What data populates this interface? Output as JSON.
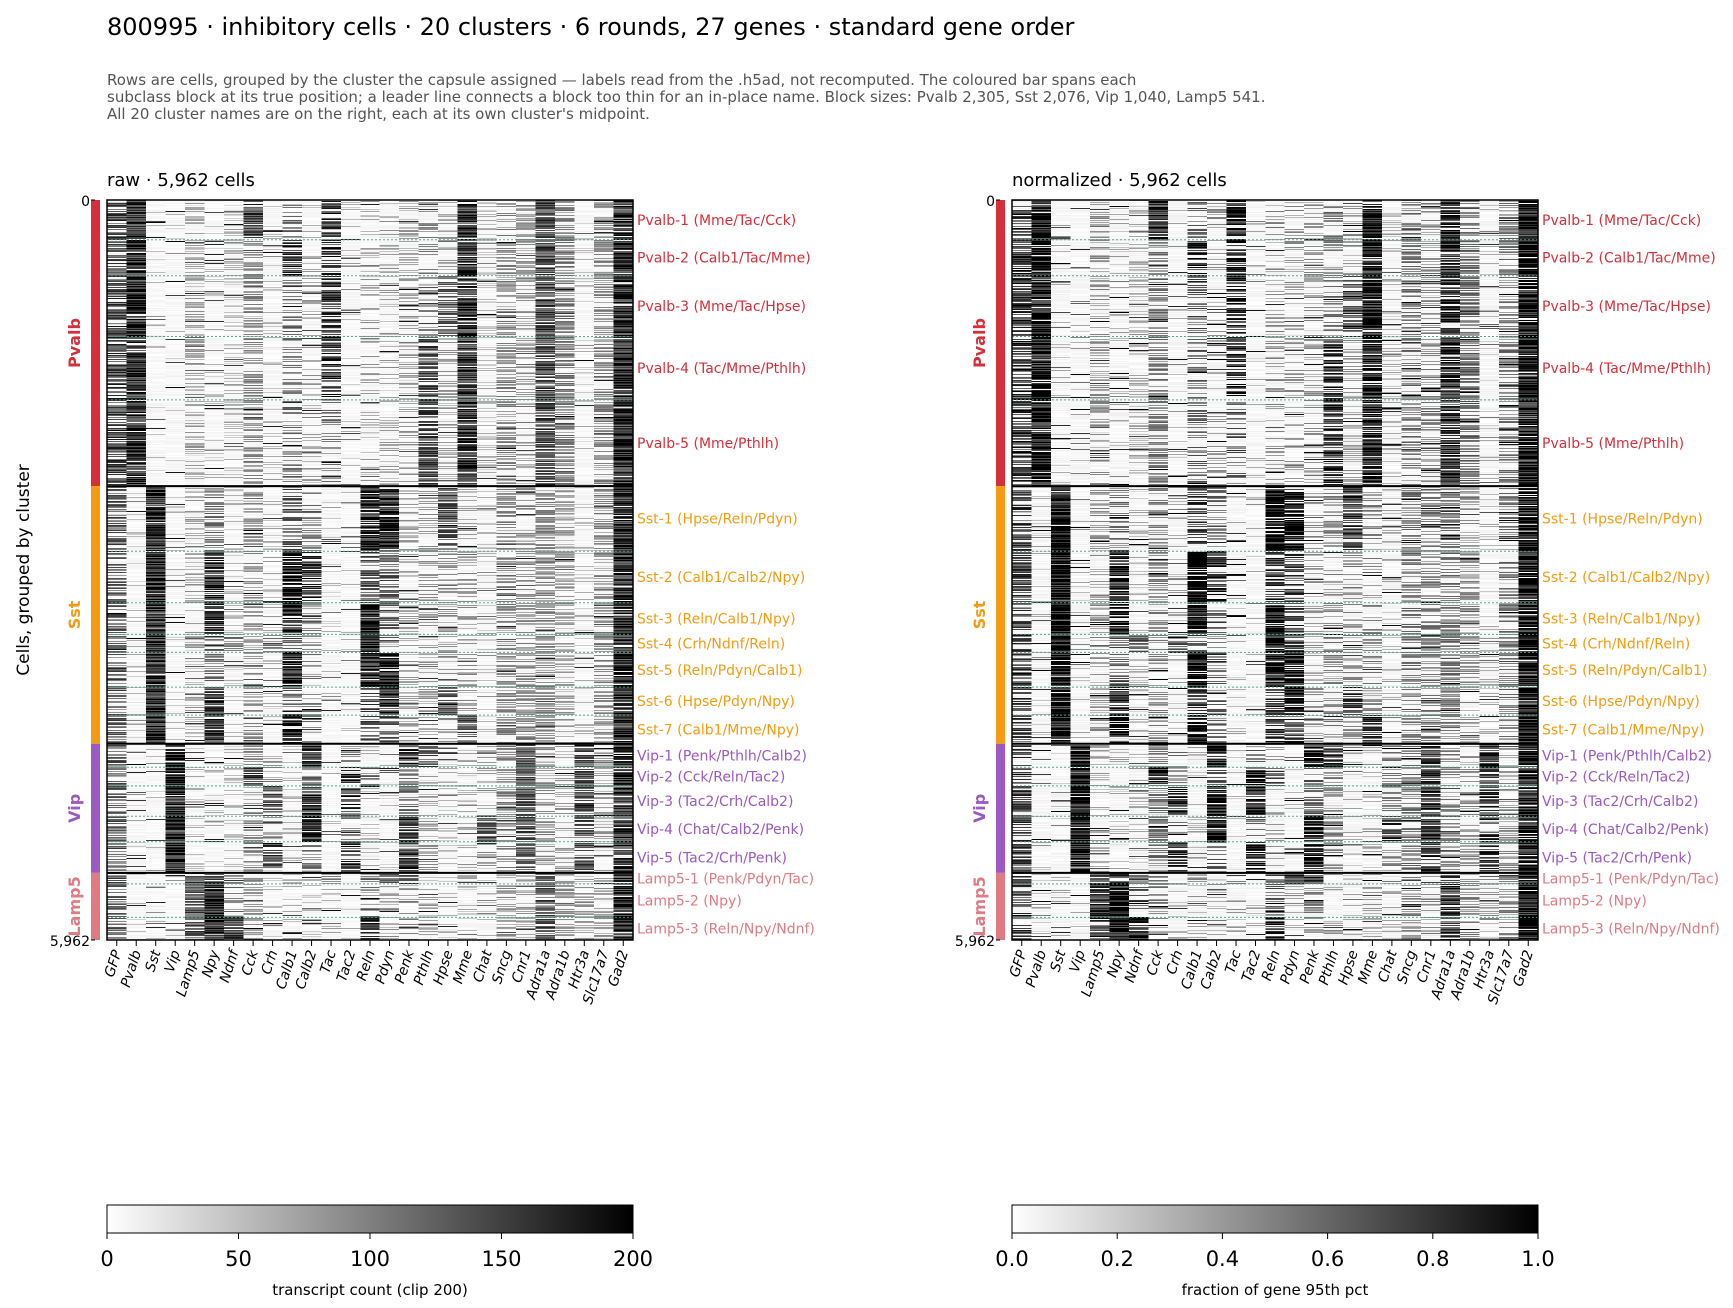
{
  "title": "800995 · inhibitory cells · 20 clusters · 6 rounds, 27 genes · standard gene order",
  "subtitle": [
    "Rows are cells, grouped by the cluster the capsule assigned — labels read from the .h5ad, not recomputed. The coloured bar spans each",
    "subclass block at its true position; a leader line connects a block too thin for an in-place name.  Block sizes: Pvalb 2,305, Sst 2,076, Vip 1,040, Lamp5 541.",
    "All 20 cluster names are on the right, each at its own cluster's midpoint."
  ],
  "y_axis_label": "Cells, grouped by cluster",
  "colors": {
    "Pvalb": "#d62f3a",
    "Sst": "#f59b12",
    "Vip": "#9b59c2",
    "Lamp5": "#e07b84",
    "cluster_divider": "#4a9e8a"
  },
  "chart_data": {
    "type": "heatmap",
    "total_cells": 5962,
    "y_ticks": [
      "0",
      "5,962"
    ],
    "subclasses": [
      {
        "name": "Pvalb",
        "start": 0,
        "size": 2305
      },
      {
        "name": "Sst",
        "start": 2305,
        "size": 2076
      },
      {
        "name": "Vip",
        "start": 4381,
        "size": 1040
      },
      {
        "name": "Lamp5",
        "start": 5421,
        "size": 541
      }
    ],
    "clusters": [
      {
        "name": "Pvalb-1 (Mme/Tac/Cck)",
        "subclass": "Pvalb",
        "start": 0,
        "end": 320
      },
      {
        "name": "Pvalb-2 (Calb1/Tac/Mme)",
        "subclass": "Pvalb",
        "start": 320,
        "end": 610
      },
      {
        "name": "Pvalb-3 (Mme/Tac/Hpse)",
        "subclass": "Pvalb",
        "start": 610,
        "end": 1100
      },
      {
        "name": "Pvalb-4 (Tac/Mme/Pthlh)",
        "subclass": "Pvalb",
        "start": 1100,
        "end": 1610
      },
      {
        "name": "Pvalb-5 (Mme/Pthlh)",
        "subclass": "Pvalb",
        "start": 1610,
        "end": 2305
      },
      {
        "name": "Sst-1 (Hpse/Reln/Pdyn)",
        "subclass": "Sst",
        "start": 2305,
        "end": 2830
      },
      {
        "name": "Sst-2 (Calb1/Calb2/Npy)",
        "subclass": "Sst",
        "start": 2830,
        "end": 3245
      },
      {
        "name": "Sst-3 (Reln/Calb1/Npy)",
        "subclass": "Sst",
        "start": 3245,
        "end": 3500
      },
      {
        "name": "Sst-4 (Crh/Ndnf/Reln)",
        "subclass": "Sst",
        "start": 3500,
        "end": 3645
      },
      {
        "name": "Sst-5 (Reln/Pdyn/Calb1)",
        "subclass": "Sst",
        "start": 3645,
        "end": 3925
      },
      {
        "name": "Sst-6 (Hpse/Pdyn/Npy)",
        "subclass": "Sst",
        "start": 3925,
        "end": 4150
      },
      {
        "name": "Sst-7 (Calb1/Mme/Npy)",
        "subclass": "Sst",
        "start": 4150,
        "end": 4381
      },
      {
        "name": "Vip-1 (Penk/Pthlh/Calb2)",
        "subclass": "Vip",
        "start": 4381,
        "end": 4570
      },
      {
        "name": "Vip-2 (Cck/Reln/Tac2)",
        "subclass": "Vip",
        "start": 4570,
        "end": 4720
      },
      {
        "name": "Vip-3 (Tac2/Crh/Calb2)",
        "subclass": "Vip",
        "start": 4720,
        "end": 4965
      },
      {
        "name": "Vip-4 (Chat/Calb2/Penk)",
        "subclass": "Vip",
        "start": 4965,
        "end": 5170
      },
      {
        "name": "Vip-5 (Tac2/Crh/Penk)",
        "subclass": "Vip",
        "start": 5170,
        "end": 5421
      },
      {
        "name": "Lamp5-1 (Penk/Pdyn/Tac)",
        "subclass": "Lamp5",
        "start": 5421,
        "end": 5510
      },
      {
        "name": "Lamp5-2 (Npy)",
        "subclass": "Lamp5",
        "start": 5510,
        "end": 5780
      },
      {
        "name": "Lamp5-3 (Reln/Npy/Ndnf)",
        "subclass": "Lamp5",
        "start": 5780,
        "end": 5962
      }
    ],
    "panels": [
      {
        "title": "raw · 5,962 cells",
        "genes": [
          "GFP",
          "Pvalb",
          "Sst",
          "Vip",
          "Lamp5",
          "Npy",
          "Ndnf",
          "Cck",
          "Crh",
          "Calb1",
          "Calb2",
          "Tac",
          "Tac2",
          "Reln",
          "Pdyn",
          "Penk",
          "Pthlh",
          "Hpse",
          "Mme",
          "Chat",
          "Sncg",
          "Cnr1",
          "Adra1a",
          "Adra1b",
          "Htr3a",
          "Slc17a7",
          "Gad2"
        ],
        "colorbar": {
          "label": "transcript count (clip 200)",
          "min": 0,
          "max": 200,
          "ticks": [
            "0",
            "50",
            "100",
            "150",
            "200"
          ]
        }
      },
      {
        "title": "normalized · 5,962 cells",
        "genes": [
          "GFP",
          "Pvalb",
          "Sst",
          "Vip",
          "Lamp5",
          "Npy",
          "Ndnf",
          "Cck",
          "Crh",
          "Calb1",
          "Calb2",
          "Tac",
          "Tac2",
          "Reln",
          "Pdyn",
          "Penk",
          "Pthlh",
          "Hpse",
          "Mme",
          "Chat",
          "Sncg",
          "Cnr1",
          "Adra1a",
          "Adra1b",
          "Htr3a",
          "Slc17a7",
          "Gad2"
        ],
        "colorbar": {
          "label": "fraction of gene 95th pct",
          "min": 0.0,
          "max": 1.0,
          "ticks": [
            "0.0",
            "0.2",
            "0.4",
            "0.6",
            "0.8",
            "1.0"
          ]
        }
      }
    ]
  }
}
